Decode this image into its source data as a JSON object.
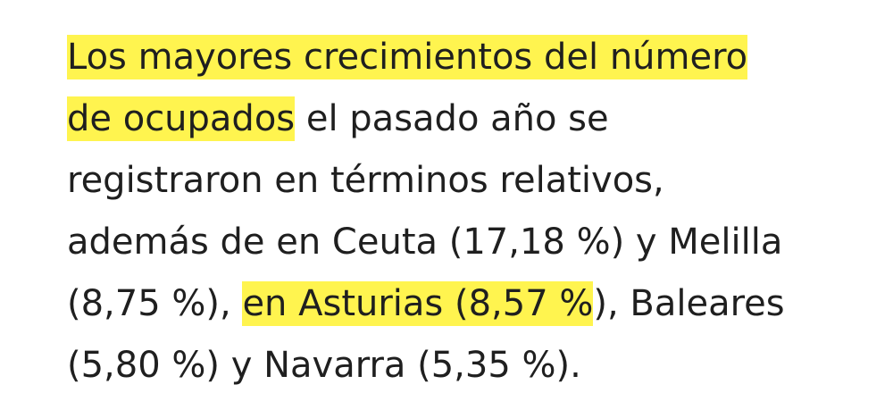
{
  "paragraph": {
    "highlight_color": "#fff44f",
    "lines": [
      {
        "segments": [
          {
            "text": "Los mayores crecimientos del número",
            "highlight": true
          }
        ]
      },
      {
        "segments": [
          {
            "text": "de ocupados",
            "highlight": true
          },
          {
            "text": " el pasado año se",
            "highlight": false
          }
        ]
      },
      {
        "segments": [
          {
            "text": "registraron en términos relativos,",
            "highlight": false
          }
        ]
      },
      {
        "segments": [
          {
            "text": "además de en Ceuta (17,18 %) y Melilla",
            "highlight": false
          }
        ]
      },
      {
        "segments": [
          {
            "text": "(8,75 %), ",
            "highlight": false
          },
          {
            "text": "en Asturias (8,57 %",
            "highlight": true
          },
          {
            "text": "), Baleares",
            "highlight": false
          }
        ]
      },
      {
        "segments": [
          {
            "text": "(5,80 %) y Navarra (5,35 %).",
            "highlight": false
          }
        ]
      }
    ]
  }
}
